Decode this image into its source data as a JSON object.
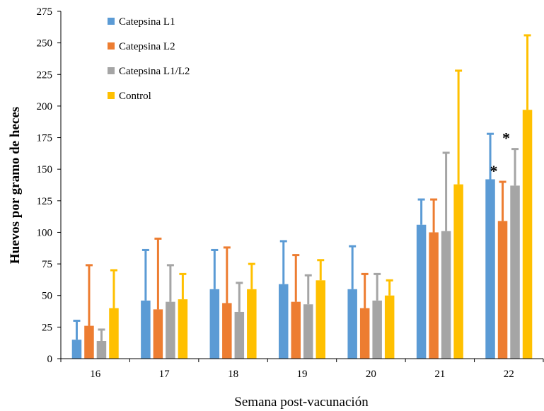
{
  "chart_data": {
    "type": "bar",
    "title": "",
    "xlabel": "Semana post-vacunación",
    "ylabel": "Huevos por gramo de heces",
    "ylim": [
      0,
      275
    ],
    "yticks": [
      0,
      25,
      50,
      75,
      100,
      125,
      150,
      175,
      200,
      225,
      250,
      275
    ],
    "grid": false,
    "legend_position": "top-left",
    "error_bars": "positive-only",
    "categories": [
      "16",
      "17",
      "18",
      "19",
      "20",
      "21",
      "22"
    ],
    "series": [
      {
        "name": "Catepsina L1",
        "color": "#5B9BD5",
        "values": [
          15,
          46,
          55,
          59,
          55,
          106,
          142
        ],
        "error_upper": [
          30,
          86,
          86,
          93,
          89,
          126,
          178
        ]
      },
      {
        "name": "Catepsina L2",
        "color": "#ED7D31",
        "values": [
          26,
          39,
          44,
          45,
          40,
          100,
          109
        ],
        "error_upper": [
          74,
          95,
          88,
          82,
          67,
          126,
          140
        ]
      },
      {
        "name": "Catepsina L1/L2",
        "color": "#A5A5A5",
        "values": [
          14,
          45,
          37,
          43,
          46,
          101,
          137
        ],
        "error_upper": [
          23,
          74,
          60,
          66,
          67,
          163,
          166
        ]
      },
      {
        "name": "Control",
        "color": "#FFC000",
        "values": [
          40,
          47,
          55,
          62,
          50,
          138,
          197
        ],
        "error_upper": [
          70,
          67,
          75,
          78,
          62,
          228,
          256
        ]
      }
    ],
    "annotations": [
      {
        "text": "*",
        "category": "22",
        "series": "Catepsina L2"
      },
      {
        "text": "*",
        "category": "22",
        "series": "Catepsina L1/L2"
      }
    ]
  }
}
